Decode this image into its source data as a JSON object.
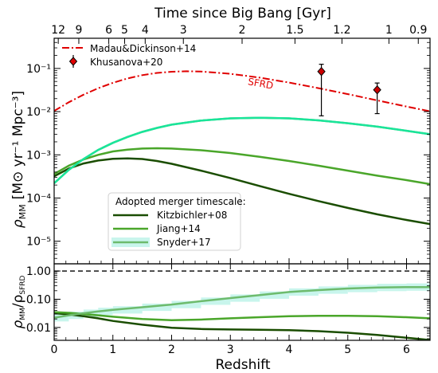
{
  "chart_data": {
    "type": "line",
    "top_axis": {
      "label": "Time since Big Bang [Gyr]",
      "ticks": [
        {
          "label": "12",
          "z": 0.07
        },
        {
          "label": "9",
          "z": 0.42
        },
        {
          "label": "6",
          "z": 0.93
        },
        {
          "label": "5",
          "z": 1.2
        },
        {
          "label": "4",
          "z": 1.55
        },
        {
          "label": "3",
          "z": 2.2
        },
        {
          "label": "2",
          "z": 3.2
        },
        {
          "label": "1.5",
          "z": 4.1
        },
        {
          "label": "1.2",
          "z": 4.9
        },
        {
          "label": "1",
          "z": 5.7
        },
        {
          "label": "0.9",
          "z": 6.2
        }
      ]
    },
    "xlabel": "Redshift",
    "xlim": [
      0,
      6.4
    ],
    "xticks": [
      0,
      1,
      2,
      3,
      4,
      5,
      6
    ],
    "top_panel": {
      "ylabel": "ρ_MM  [M⊙ yr⁻¹ Mpc⁻³]",
      "ylabel_main": "ρ",
      "ylabel_sub": "MM",
      "ylabel_units": "[M⊙ yr⁻¹ Mpc⁻³]",
      "yscale": "log",
      "ylim": [
        3e-06,
        0.5
      ],
      "yticks": [
        {
          "value": 1e-05,
          "label": "10⁻⁵"
        },
        {
          "value": 0.0001,
          "label": "10⁻⁴"
        },
        {
          "value": 0.001,
          "label": "10⁻³"
        },
        {
          "value": 0.01,
          "label": "10⁻²"
        },
        {
          "value": 0.1,
          "label": "10⁻¹"
        }
      ],
      "annotation": {
        "text": "SFRD",
        "z": 3.3,
        "y": 0.05
      },
      "series": [
        {
          "name": "Madau&Dickinson+14",
          "style": "dashdot",
          "color": "#e00000",
          "x": [
            0,
            0.25,
            0.5,
            0.75,
            1.0,
            1.25,
            1.5,
            1.75,
            2.0,
            2.25,
            2.5,
            3.0,
            3.5,
            4.0,
            4.5,
            5.0,
            5.5,
            6.0,
            6.4
          ],
          "y": [
            0.0104,
            0.0165,
            0.0247,
            0.0349,
            0.0466,
            0.0587,
            0.0698,
            0.0786,
            0.0841,
            0.0861,
            0.0849,
            0.0753,
            0.0612,
            0.0471,
            0.035,
            0.0254,
            0.0183,
            0.0131,
            0.0102
          ]
        },
        {
          "name": "Khusanova+20",
          "style": "errorbar",
          "color": "#cc0000",
          "points": [
            {
              "x": 4.55,
              "y": 0.085,
              "ylo": 0.008,
              "yhi": 0.125
            },
            {
              "x": 5.5,
              "y": 0.032,
              "ylo": 0.009,
              "yhi": 0.046
            }
          ]
        },
        {
          "name": "Kitzbichler+08",
          "color": "#1a4d00",
          "x": [
            0,
            0.25,
            0.5,
            0.75,
            1.0,
            1.25,
            1.5,
            1.75,
            2.0,
            2.5,
            3.0,
            3.5,
            4.0,
            4.5,
            5.0,
            5.5,
            6.0,
            6.4
          ],
          "y": [
            0.00032,
            0.00048,
            0.00063,
            0.00074,
            0.00081,
            0.00083,
            0.0008,
            0.00072,
            0.00062,
            0.00043,
            0.00029,
            0.00019,
            0.000125,
            8.5e-05,
            5.9e-05,
            4.2e-05,
            3.1e-05,
            2.5e-05
          ]
        },
        {
          "name": "Jiang+14",
          "color": "#4aa62a",
          "x": [
            0,
            0.25,
            0.5,
            0.75,
            1.0,
            1.25,
            1.5,
            1.75,
            2.0,
            2.5,
            3.0,
            3.5,
            4.0,
            4.5,
            5.0,
            5.5,
            6.0,
            6.4
          ],
          "y": [
            0.00036,
            0.00056,
            0.00078,
            0.001,
            0.0012,
            0.00132,
            0.0014,
            0.00142,
            0.0014,
            0.00128,
            0.0011,
            0.0009,
            0.00072,
            0.00056,
            0.00043,
            0.00033,
            0.00026,
            0.00021
          ]
        },
        {
          "name": "Snyder+17",
          "color": "#6dbb6d",
          "band_color": "#c8f5ec",
          "x": [
            0,
            0.25,
            0.5,
            0.75,
            1.0,
            1.25,
            1.5,
            1.75,
            2.0,
            2.5,
            3.0,
            3.5,
            4.0,
            4.5,
            5.0,
            5.5,
            6.0,
            6.4
          ],
          "y": [
            0.00022,
            0.00045,
            0.0008,
            0.0013,
            0.0019,
            0.0026,
            0.0034,
            0.0042,
            0.005,
            0.0062,
            0.007,
            0.0072,
            0.007,
            0.0063,
            0.0054,
            0.0045,
            0.0036,
            0.003
          ]
        },
        {
          "name": "",
          "color": "#19e59a",
          "x": [
            0,
            0.25,
            0.5,
            0.75,
            1.0,
            1.25,
            1.5,
            1.75,
            2.0,
            2.5,
            3.0,
            3.5,
            4.0,
            4.5,
            5.0,
            5.5,
            6.0,
            6.4
          ],
          "y": [
            0.00022,
            0.00045,
            0.0008,
            0.0013,
            0.0019,
            0.0026,
            0.0034,
            0.0042,
            0.005,
            0.0062,
            0.007,
            0.0072,
            0.007,
            0.0063,
            0.0054,
            0.0045,
            0.0036,
            0.003
          ]
        }
      ],
      "legend_top": [
        "Madau&Dickinson+14",
        "Khusanova+20"
      ],
      "legend_bottom": {
        "title": "Adopted merger timescale:",
        "entries": [
          "Kitzbichler+08",
          "Jiang+14",
          "Snyder+17"
        ]
      }
    },
    "bottom_panel": {
      "ylabel": "ρ_MM/ρ_SFRD",
      "ylabel_num": "ρ",
      "ylabel_num_sub": "MM",
      "ylabel_den": "/ρ",
      "ylabel_den_sub": "SFRD",
      "yscale": "log",
      "ylim": [
        0.0035,
        1.8
      ],
      "yticks": [
        {
          "value": 0.01,
          "label": "0.01"
        },
        {
          "value": 0.1,
          "label": "0.10"
        },
        {
          "value": 1.0,
          "label": "1.00"
        }
      ],
      "reference_line": 1.0,
      "series": [
        {
          "name": "Kitzbichler+08",
          "color": "#1a4d00",
          "x": [
            0,
            0.25,
            0.5,
            0.75,
            1.0,
            1.5,
            2.0,
            2.5,
            3.0,
            3.5,
            4.0,
            4.5,
            5.0,
            5.5,
            6.0,
            6.4
          ],
          "y": [
            0.032,
            0.029,
            0.025,
            0.021,
            0.017,
            0.0125,
            0.0098,
            0.0088,
            0.0085,
            0.0083,
            0.008,
            0.0074,
            0.0065,
            0.0054,
            0.0043,
            0.0036
          ]
        },
        {
          "name": "Jiang+14",
          "color": "#4aa62a",
          "x": [
            0,
            0.25,
            0.5,
            0.75,
            1.0,
            1.5,
            2.0,
            2.5,
            3.0,
            3.5,
            4.0,
            4.5,
            5.0,
            5.5,
            6.0,
            6.4
          ],
          "y": [
            0.035,
            0.033,
            0.03,
            0.027,
            0.024,
            0.02,
            0.018,
            0.019,
            0.021,
            0.023,
            0.025,
            0.026,
            0.026,
            0.025,
            0.023,
            0.021
          ]
        },
        {
          "name": "Snyder+17",
          "color": "#6dbb6d",
          "band_color": "#c8f5ec",
          "x": [
            0,
            0.25,
            0.5,
            0.75,
            1.0,
            1.5,
            2.0,
            2.5,
            3.0,
            3.5,
            4.0,
            4.5,
            5.0,
            5.5,
            6.0,
            6.4
          ],
          "y": [
            0.022,
            0.027,
            0.032,
            0.037,
            0.042,
            0.052,
            0.065,
            0.085,
            0.11,
            0.14,
            0.18,
            0.21,
            0.24,
            0.26,
            0.27,
            0.27
          ]
        }
      ]
    }
  }
}
